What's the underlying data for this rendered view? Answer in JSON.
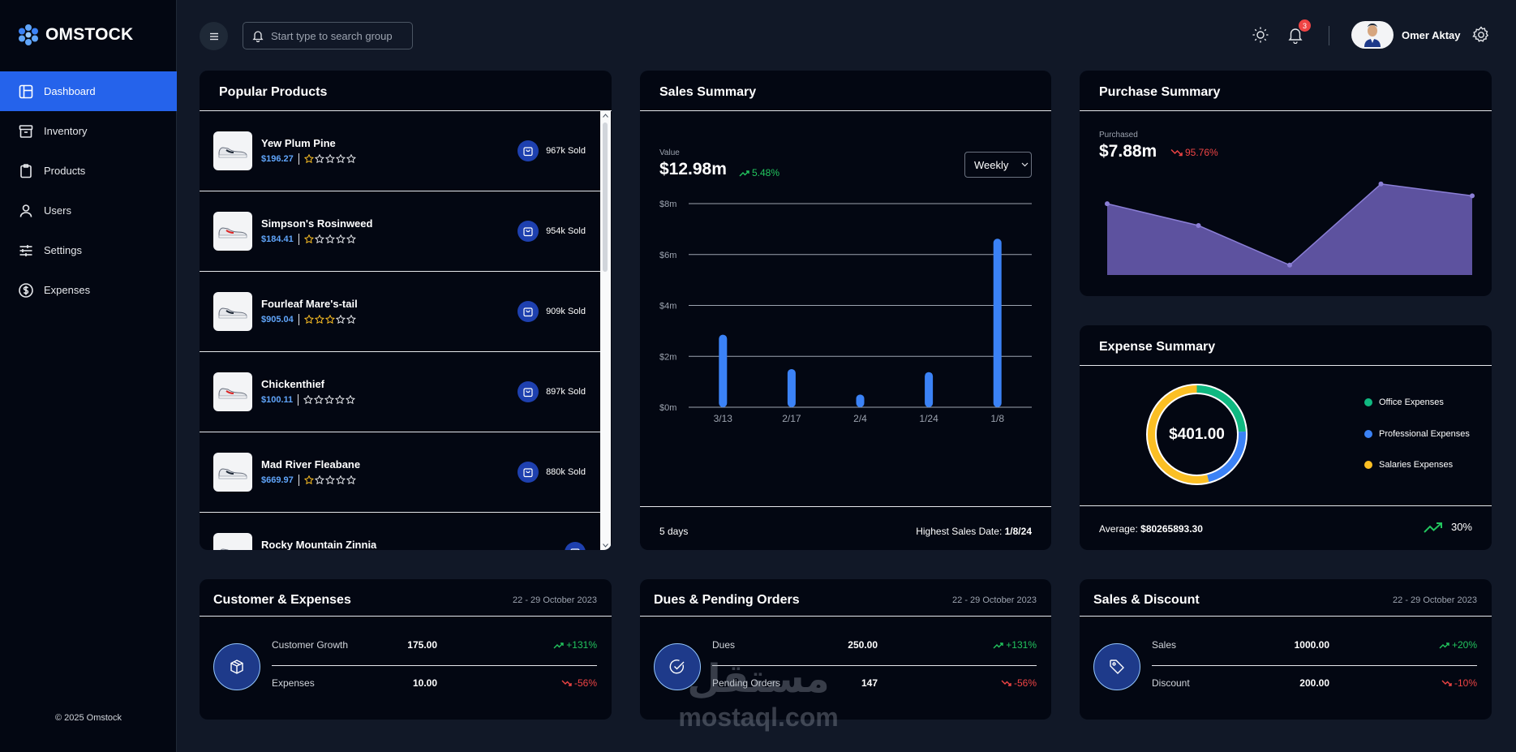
{
  "app": {
    "name": "OMSTOCK",
    "copyright": "© 2025 Omstock"
  },
  "nav": [
    {
      "label": "Dashboard",
      "icon": "dashboard-icon"
    },
    {
      "label": "Inventory",
      "icon": "archive-icon"
    },
    {
      "label": "Products",
      "icon": "clipboard-icon"
    },
    {
      "label": "Users",
      "icon": "user-icon"
    },
    {
      "label": "Settings",
      "icon": "sliders-icon"
    },
    {
      "label": "Expenses",
      "icon": "dollar-circle-icon"
    }
  ],
  "header": {
    "search_placeholder": "Start type to search groups & products",
    "notification_count": "3",
    "user_name": "Omer Aktay"
  },
  "popular": {
    "title": "Popular Products",
    "items": [
      {
        "name": "Yew Plum Pine",
        "price": "$196.27",
        "rating": 1,
        "sold": "967k Sold"
      },
      {
        "name": "Simpson's Rosinweed",
        "price": "$184.41",
        "rating": 1,
        "sold": "954k Sold"
      },
      {
        "name": "Fourleaf Mare's-tail",
        "price": "$905.04",
        "rating": 3,
        "sold": "909k Sold"
      },
      {
        "name": "Chickenthief",
        "price": "$100.11",
        "rating": 0,
        "sold": "897k Sold"
      },
      {
        "name": "Mad River Fleabane",
        "price": "$669.97",
        "rating": 1,
        "sold": "880k Sold"
      },
      {
        "name": "Rocky Mountain Zinnia",
        "price": "",
        "rating": 0,
        "sold": ""
      }
    ]
  },
  "sales": {
    "title": "Sales Summary",
    "value_label": "Value",
    "value": "$12.98m",
    "change": "5.48%",
    "period": "Weekly",
    "footer_left": "5 days",
    "footer_right_label": "Highest Sales Date:",
    "footer_right_value": "1/8/24"
  },
  "purchase": {
    "title": "Purchase Summary",
    "label": "Purchased",
    "value": "$7.88m",
    "change": "95.76%"
  },
  "expense": {
    "title": "Expense Summary",
    "total": "$401.00",
    "legend": [
      {
        "label": "Office Expenses",
        "color": "#10b981"
      },
      {
        "label": "Professional Expenses",
        "color": "#3b82f6"
      },
      {
        "label": "Salaries Expenses",
        "color": "#fbbf24"
      }
    ],
    "average_label": "Average:",
    "average_value": "$80265893.30",
    "trend": "30%"
  },
  "stats": [
    {
      "title": "Customer & Expenses",
      "date": "22 - 29 October 2023",
      "icon": "box-icon",
      "rows": [
        {
          "label": "Customer Growth",
          "value": "175.00",
          "change": "+131%",
          "dir": "up"
        },
        {
          "label": "Expenses",
          "value": "10.00",
          "change": "-56%",
          "dir": "down"
        }
      ]
    },
    {
      "title": "Dues & Pending Orders",
      "date": "22 - 29 October 2023",
      "icon": "check-circle-icon",
      "rows": [
        {
          "label": "Dues",
          "value": "250.00",
          "change": "+131%",
          "dir": "up"
        },
        {
          "label": "Pending Orders",
          "value": "147",
          "change": "-56%",
          "dir": "down"
        }
      ]
    },
    {
      "title": "Sales & Discount",
      "date": "22 - 29 October 2023",
      "icon": "tag-icon",
      "rows": [
        {
          "label": "Sales",
          "value": "1000.00",
          "change": "+20%",
          "dir": "up"
        },
        {
          "label": "Discount",
          "value": "200.00",
          "change": "-10%",
          "dir": "down"
        }
      ]
    }
  ],
  "watermark": {
    "arabic": "مستقل",
    "latin": "mostaql.com"
  },
  "chart_data": [
    {
      "type": "bar",
      "title": "Sales Summary",
      "categories": [
        "3/13",
        "2/17",
        "2/4",
        "1/24",
        "1/8"
      ],
      "values": [
        2.85,
        1.5,
        0.5,
        1.38,
        6.62
      ],
      "unit": "m",
      "ytick_labels": [
        "$0m",
        "$2m",
        "$4m",
        "$6m",
        "$8m"
      ],
      "ylim": [
        0,
        8
      ],
      "color": "#3b82f6"
    },
    {
      "type": "area",
      "title": "Purchase Summary",
      "x": [
        0,
        1,
        2,
        3,
        4
      ],
      "values": [
        0.72,
        0.5,
        0.1,
        0.92,
        0.8
      ],
      "ylim": [
        0,
        1
      ],
      "color": "#6d5fb8"
    },
    {
      "type": "pie",
      "title": "Expense Summary",
      "labels": [
        "Office Expenses",
        "Professional Expenses",
        "Salaries Expenses"
      ],
      "values": [
        24,
        22,
        54
      ],
      "colors": [
        "#10b981",
        "#3b82f6",
        "#fbbf24"
      ]
    }
  ]
}
